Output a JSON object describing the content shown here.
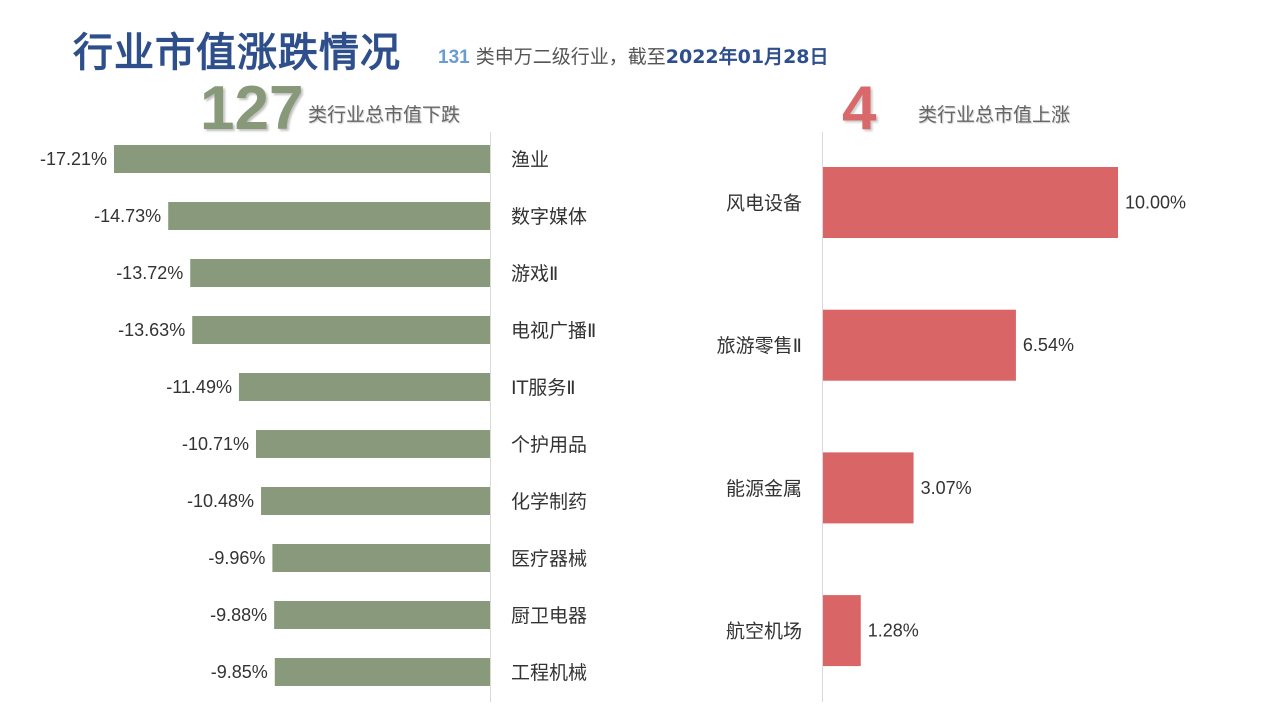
{
  "header": {
    "title": "行业市值涨跌情况",
    "subtitle_count": "131",
    "subtitle_text": " 类申万二级行业，截至",
    "subtitle_date": "2022年01月28日"
  },
  "summary": {
    "down_count": "127",
    "down_label": "类行业总市值下跌",
    "up_count": "4",
    "up_label": "类行业总市值上涨"
  },
  "colors": {
    "down_bar": "#889a7b",
    "up_bar": "#d96567",
    "title": "#2e4f8c"
  },
  "chart_data": [
    {
      "type": "bar",
      "orientation": "horizontal",
      "categories": [
        "渔业",
        "数字媒体",
        "游戏Ⅱ",
        "电视广播Ⅱ",
        "IT服务Ⅱ",
        "个护用品",
        "化学制药",
        "医疗器械",
        "厨卫电器",
        "工程机械"
      ],
      "values": [
        -17.21,
        -14.73,
        -13.72,
        -13.63,
        -11.49,
        -10.71,
        -10.48,
        -9.96,
        -9.88,
        -9.85
      ],
      "value_labels": [
        "-17.21%",
        "-14.73%",
        "-13.72%",
        "-13.63%",
        "-11.49%",
        "-10.71%",
        "-10.48%",
        "-9.96%",
        "-9.88%",
        "-9.85%"
      ],
      "xlim": [
        -17.21,
        0
      ]
    },
    {
      "type": "bar",
      "orientation": "horizontal",
      "categories": [
        "风电设备",
        "旅游零售Ⅱ",
        "能源金属",
        "航空机场"
      ],
      "values": [
        10.0,
        6.54,
        3.07,
        1.28
      ],
      "value_labels": [
        "10.00%",
        "6.54%",
        "3.07%",
        "1.28%"
      ],
      "xlim": [
        0,
        10.0
      ]
    }
  ]
}
